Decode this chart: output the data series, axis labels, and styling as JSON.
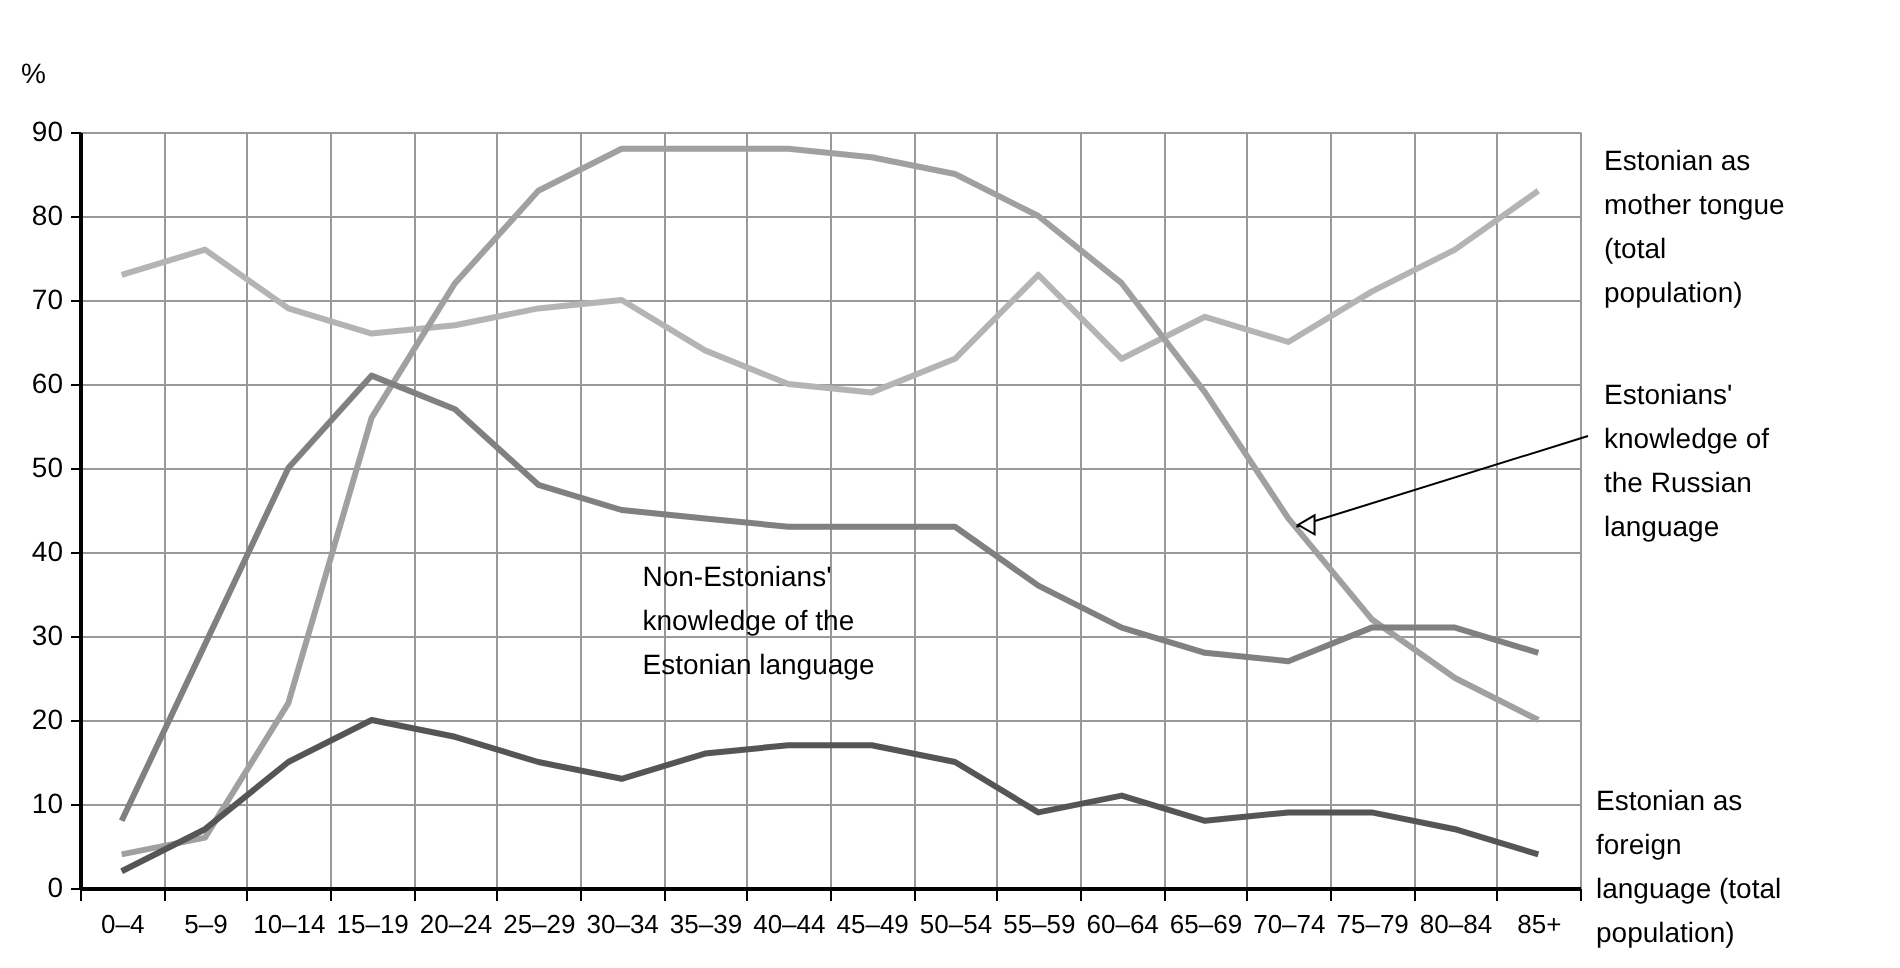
{
  "chart_data": {
    "type": "line",
    "ylabel": "%",
    "categories": [
      "0–4",
      "5–9",
      "10–14",
      "15–19",
      "20–24",
      "25–29",
      "30–34",
      "35–39",
      "40–44",
      "45–49",
      "50–54",
      "55–59",
      "60–64",
      "65–69",
      "70–74",
      "75–79",
      "80–84",
      "85+"
    ],
    "series": [
      {
        "name": "Estonian as mother tongue (total population)",
        "color": "#b4b4b4",
        "values": [
          73,
          76,
          69,
          66,
          67,
          69,
          70,
          64,
          60,
          59,
          63,
          73,
          63,
          68,
          65,
          71,
          76,
          83
        ]
      },
      {
        "name": "Estonians' knowledge of the Russian language",
        "color": "#a0a0a0",
        "values": [
          4,
          6,
          22,
          56,
          72,
          83,
          88,
          88,
          88,
          87,
          85,
          80,
          72,
          59,
          44,
          32,
          25,
          20
        ]
      },
      {
        "name": "Non-Estonians' knowledge of the Estonian language",
        "color": "#808080",
        "values": [
          8,
          29,
          50,
          61,
          57,
          48,
          45,
          44,
          43,
          43,
          43,
          36,
          31,
          28,
          27,
          31,
          31,
          28
        ]
      },
      {
        "name": "Estonian as foreign language (total population)",
        "color": "#555555",
        "values": [
          2,
          7,
          15,
          20,
          18,
          15,
          13,
          16,
          17,
          17,
          15,
          9,
          11,
          8,
          9,
          9,
          7,
          4
        ]
      }
    ],
    "ylim": [
      0,
      90
    ],
    "yticks": [
      0,
      10,
      20,
      30,
      40,
      50,
      60,
      70,
      80,
      90
    ],
    "grid": true,
    "legend": false,
    "marker": "none",
    "line_style": "solid"
  }
}
